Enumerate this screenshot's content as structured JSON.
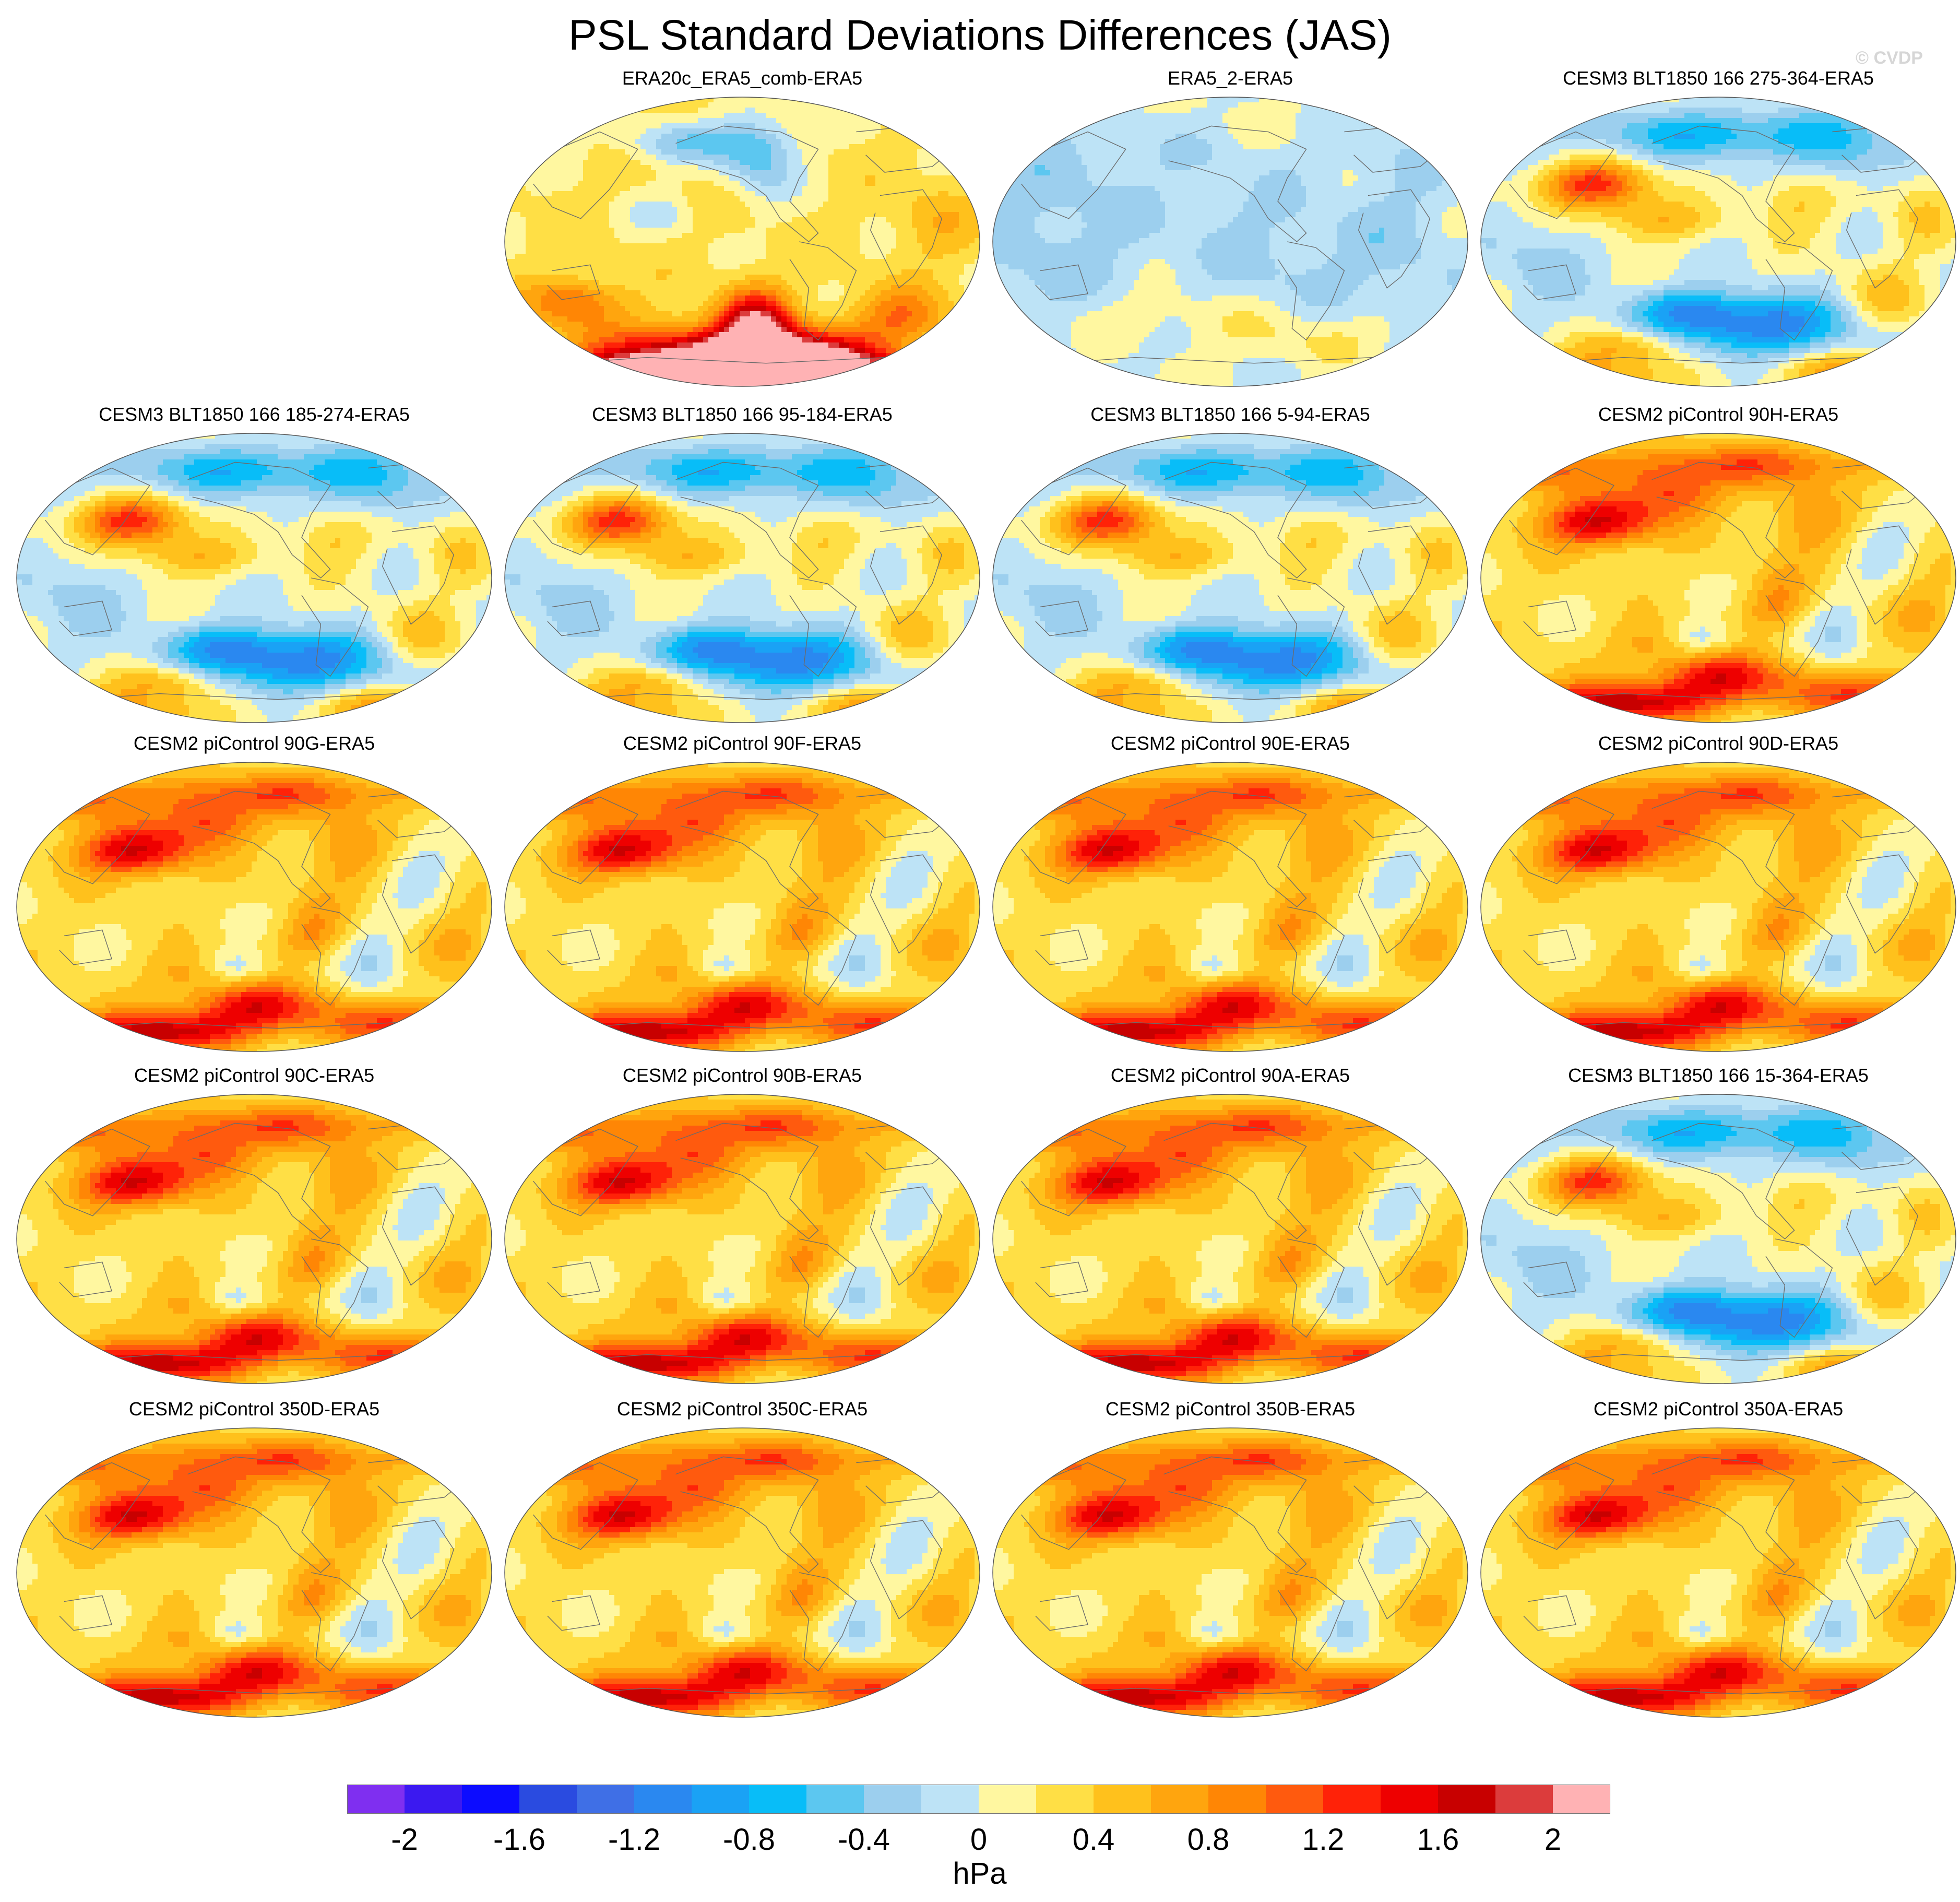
{
  "title": "PSL Standard Deviations Differences (JAS)",
  "watermark": "© CVDP",
  "chart_data": {
    "type": "heatmap",
    "description": "Global maps (Robinson-like projection, Pacific-centred) of seasonal (JAS) sea level pressure standard deviation differences relative to ERA5",
    "variable": "PSL",
    "season": "JAS",
    "units": "hPa",
    "panels": [
      {
        "title": "ERA20c_ERA5_comb-ERA5",
        "row": 0,
        "col": 1,
        "pattern": "southern"
      },
      {
        "title": "ERA5_2-ERA5",
        "row": 0,
        "col": 2,
        "pattern": "neutral"
      },
      {
        "title": "CESM3 BLT1850 166 275-364-ERA5",
        "row": 0,
        "col": 3,
        "pattern": "cesm3"
      },
      {
        "title": "CESM3 BLT1850 166 185-274-ERA5",
        "row": 1,
        "col": 0,
        "pattern": "cesm3"
      },
      {
        "title": "CESM3 BLT1850 166 95-184-ERA5",
        "row": 1,
        "col": 1,
        "pattern": "cesm3"
      },
      {
        "title": "CESM3 BLT1850 166 5-94-ERA5",
        "row": 1,
        "col": 2,
        "pattern": "cesm3"
      },
      {
        "title": "CESM2 piControl 90H-ERA5",
        "row": 1,
        "col": 3,
        "pattern": "cesm2"
      },
      {
        "title": "CESM2 piControl 90G-ERA5",
        "row": 2,
        "col": 0,
        "pattern": "cesm2"
      },
      {
        "title": "CESM2 piControl 90F-ERA5",
        "row": 2,
        "col": 1,
        "pattern": "cesm2"
      },
      {
        "title": "CESM2 piControl 90E-ERA5",
        "row": 2,
        "col": 2,
        "pattern": "cesm2"
      },
      {
        "title": "CESM2 piControl 90D-ERA5",
        "row": 2,
        "col": 3,
        "pattern": "cesm2"
      },
      {
        "title": "CESM2 piControl 90C-ERA5",
        "row": 3,
        "col": 0,
        "pattern": "cesm2"
      },
      {
        "title": "CESM2 piControl 90B-ERA5",
        "row": 3,
        "col": 1,
        "pattern": "cesm2"
      },
      {
        "title": "CESM2 piControl 90A-ERA5",
        "row": 3,
        "col": 2,
        "pattern": "cesm2"
      },
      {
        "title": "CESM3 BLT1850 166 15-364-ERA5",
        "row": 3,
        "col": 3,
        "pattern": "cesm3"
      },
      {
        "title": "CESM2 piControl 350D-ERA5",
        "row": 4,
        "col": 0,
        "pattern": "cesm2"
      },
      {
        "title": "CESM2 piControl 350C-ERA5",
        "row": 4,
        "col": 1,
        "pattern": "cesm2"
      },
      {
        "title": "CESM2 piControl 350B-ERA5",
        "row": 4,
        "col": 2,
        "pattern": "cesm2"
      },
      {
        "title": "CESM2 piControl 350A-ERA5",
        "row": 4,
        "col": 3,
        "pattern": "cesm2"
      }
    ],
    "colorbar": {
      "levels": [
        -2,
        -1.8,
        -1.6,
        -1.4,
        -1.2,
        -1.0,
        -0.8,
        -0.6,
        -0.4,
        -0.2,
        0,
        0.2,
        0.4,
        0.6,
        0.8,
        1.0,
        1.2,
        1.4,
        1.6,
        1.8,
        2.0
      ],
      "colors": [
        "#7f2ff0",
        "#3b19f0",
        "#0c0cff",
        "#2a4be0",
        "#3f6fe6",
        "#2a88f0",
        "#1aa2f5",
        "#08bdf8",
        "#5cc7f0",
        "#9ccfee",
        "#bde3f6",
        "#fff7a0",
        "#ffdf45",
        "#ffc11c",
        "#ffa50e",
        "#ff8605",
        "#ff5a0e",
        "#ff2208",
        "#ee0000",
        "#c80000",
        "#dc3c3c",
        "#ffb2b4"
      ],
      "tick_values": [
        -2,
        -1.6,
        -1.2,
        -0.8,
        -0.4,
        0,
        0.4,
        0.8,
        1.2,
        1.6,
        2
      ],
      "tick_labels": [
        "-2",
        "-1.6",
        "-1.2",
        "-0.8",
        "-0.4",
        "0",
        "0.4",
        "0.8",
        "1.2",
        "1.6",
        "2"
      ],
      "label": "hPa"
    }
  }
}
